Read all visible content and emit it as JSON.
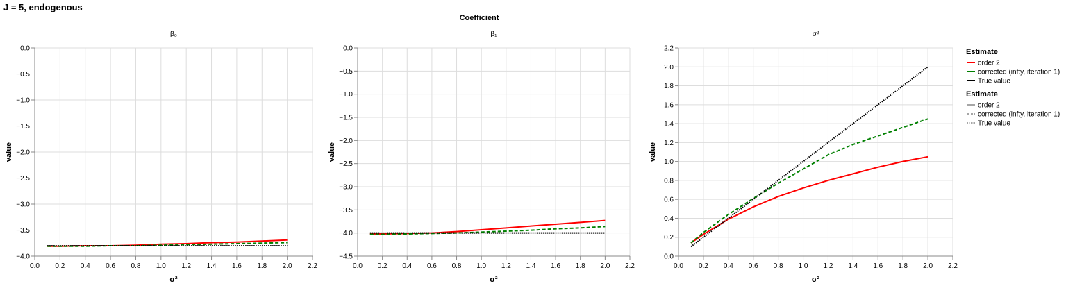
{
  "page": {
    "title": "J = 5, endogenous",
    "facet_header": "Coefficient"
  },
  "legend": {
    "color_title": "Estimate",
    "dash_title": "Estimate",
    "entries": [
      "order 2",
      "corrected (infty, iteration 1)",
      "True value"
    ],
    "colors": {
      "order 2": "#ff0000",
      "corrected (infty, iteration 1)": "#008000",
      "True value": "#000000"
    },
    "dashes": {
      "order 2": "solid",
      "corrected (infty, iteration 1)": "dashed",
      "True value": "dotted"
    }
  },
  "chart_data": [
    {
      "type": "line",
      "title": "β₀",
      "xlabel": "σ²",
      "ylabel": "value",
      "xlim": [
        0,
        2.2
      ],
      "ylim": [
        -4.0,
        0.0
      ],
      "x_ticks": [
        "0.0",
        "0.2",
        "0.4",
        "0.6",
        "0.8",
        "1.0",
        "1.2",
        "1.4",
        "1.6",
        "1.8",
        "2.0",
        "2.2"
      ],
      "y_ticks": [
        "0.0",
        "−0.5",
        "−1.0",
        "−1.5",
        "−2.0",
        "−2.5",
        "−3.0",
        "−3.5",
        "−4.0"
      ],
      "grid": true,
      "x": [
        0.1,
        0.2,
        0.4,
        0.6,
        0.8,
        1.0,
        1.2,
        1.4,
        1.6,
        1.8,
        2.0
      ],
      "series": [
        {
          "name": "order 2",
          "values": [
            -3.81,
            -3.81,
            -3.8,
            -3.8,
            -3.79,
            -3.77,
            -3.76,
            -3.74,
            -3.73,
            -3.71,
            -3.69
          ]
        },
        {
          "name": "corrected (infty, iteration 1)",
          "values": [
            -3.81,
            -3.81,
            -3.81,
            -3.8,
            -3.8,
            -3.79,
            -3.78,
            -3.77,
            -3.76,
            -3.75,
            -3.74
          ]
        },
        {
          "name": "True value",
          "values": [
            -3.8,
            -3.8,
            -3.8,
            -3.8,
            -3.8,
            -3.8,
            -3.8,
            -3.8,
            -3.8,
            -3.8,
            -3.8
          ]
        }
      ]
    },
    {
      "type": "line",
      "title": "β₁",
      "xlabel": "σ²",
      "ylabel": "value",
      "xlim": [
        0,
        2.2
      ],
      "ylim": [
        -4.5,
        0.0
      ],
      "x_ticks": [
        "0.0",
        "0.2",
        "0.4",
        "0.6",
        "0.8",
        "1.0",
        "1.2",
        "1.4",
        "1.6",
        "1.8",
        "2.0",
        "2.2"
      ],
      "y_ticks": [
        "0.0",
        "−0.5",
        "−1.0",
        "−1.5",
        "−2.0",
        "−2.5",
        "−3.0",
        "−3.5",
        "−4.0",
        "−4.5"
      ],
      "grid": true,
      "x": [
        0.1,
        0.2,
        0.4,
        0.6,
        0.8,
        1.0,
        1.2,
        1.4,
        1.6,
        1.8,
        2.0
      ],
      "series": [
        {
          "name": "order 2",
          "values": [
            -4.02,
            -4.02,
            -4.01,
            -4.0,
            -3.97,
            -3.93,
            -3.89,
            -3.85,
            -3.81,
            -3.77,
            -3.73
          ]
        },
        {
          "name": "corrected (infty, iteration 1)",
          "values": [
            -4.03,
            -4.03,
            -4.02,
            -4.01,
            -4.0,
            -3.98,
            -3.96,
            -3.94,
            -3.91,
            -3.89,
            -3.86
          ]
        },
        {
          "name": "True value",
          "values": [
            -4.0,
            -4.0,
            -4.0,
            -4.0,
            -4.0,
            -4.0,
            -4.0,
            -4.0,
            -4.0,
            -4.0,
            -4.0
          ]
        }
      ]
    },
    {
      "type": "line",
      "title": "σ²",
      "xlabel": "σ²",
      "ylabel": "value",
      "xlim": [
        0,
        2.2
      ],
      "ylim": [
        0.0,
        2.2
      ],
      "x_ticks": [
        "0.0",
        "0.2",
        "0.4",
        "0.6",
        "0.8",
        "1.0",
        "1.2",
        "1.4",
        "1.6",
        "1.8",
        "2.0",
        "2.2"
      ],
      "y_ticks": [
        "2.2",
        "2.0",
        "1.8",
        "1.6",
        "1.4",
        "1.2",
        "1.0",
        "0.8",
        "0.6",
        "0.4",
        "0.2",
        "0.0"
      ],
      "grid": true,
      "x": [
        0.1,
        0.2,
        0.4,
        0.6,
        0.8,
        1.0,
        1.2,
        1.4,
        1.6,
        1.8,
        2.0
      ],
      "series": [
        {
          "name": "order 2",
          "values": [
            0.14,
            0.23,
            0.39,
            0.52,
            0.63,
            0.72,
            0.8,
            0.87,
            0.94,
            1.0,
            1.05
          ]
        },
        {
          "name": "corrected (infty, iteration 1)",
          "values": [
            0.14,
            0.25,
            0.44,
            0.61,
            0.77,
            0.92,
            1.07,
            1.18,
            1.27,
            1.36,
            1.45
          ]
        },
        {
          "name": "True value",
          "values": [
            0.1,
            0.2,
            0.4,
            0.6,
            0.8,
            1.0,
            1.2,
            1.4,
            1.6,
            1.8,
            2.0
          ]
        }
      ]
    }
  ]
}
